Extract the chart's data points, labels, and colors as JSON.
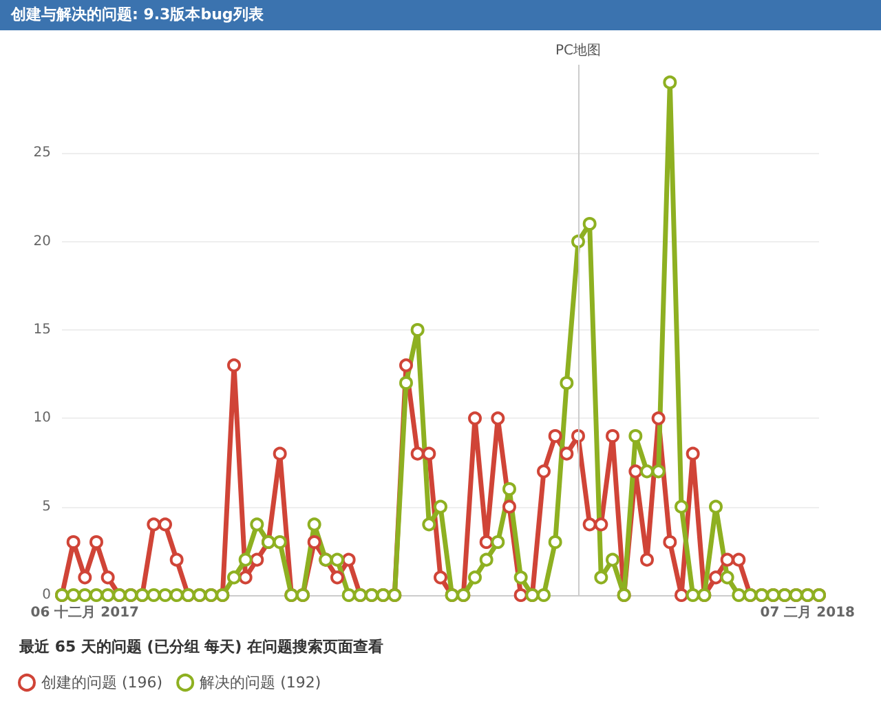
{
  "chart_data": {
    "type": "line",
    "title": "创建与解决的问题: 9.3版本bug列表",
    "x": [
      "2017-12-04",
      "2017-12-05",
      "2017-12-06",
      "2017-12-07",
      "2017-12-08",
      "2017-12-09",
      "2017-12-10",
      "2017-12-11",
      "2017-12-12",
      "2017-12-13",
      "2017-12-14",
      "2017-12-15",
      "2017-12-16",
      "2017-12-17",
      "2017-12-18",
      "2017-12-19",
      "2017-12-20",
      "2017-12-21",
      "2017-12-22",
      "2017-12-23",
      "2017-12-24",
      "2017-12-25",
      "2017-12-26",
      "2017-12-27",
      "2017-12-28",
      "2017-12-29",
      "2017-12-30",
      "2017-12-31",
      "2018-01-01",
      "2018-01-02",
      "2018-01-03",
      "2018-01-04",
      "2018-01-05",
      "2018-01-06",
      "2018-01-07",
      "2018-01-08",
      "2018-01-09",
      "2018-01-10",
      "2018-01-11",
      "2018-01-12",
      "2018-01-13",
      "2018-01-14",
      "2018-01-15",
      "2018-01-16",
      "2018-01-17",
      "2018-01-18",
      "2018-01-19",
      "2018-01-20",
      "2018-01-21",
      "2018-01-22",
      "2018-01-23",
      "2018-01-24",
      "2018-01-25",
      "2018-01-26",
      "2018-01-27",
      "2018-01-28",
      "2018-01-29",
      "2018-01-30",
      "2018-01-31",
      "2018-02-01",
      "2018-02-02",
      "2018-02-03",
      "2018-02-04",
      "2018-02-05",
      "2018-02-06",
      "2018-02-07",
      "2018-02-08"
    ],
    "series": [
      {
        "name": "创建的问题 (196)",
        "color": "#d04437",
        "values": [
          0,
          3,
          1,
          3,
          1,
          0,
          0,
          0,
          4,
          4,
          2,
          0,
          0,
          0,
          0,
          13,
          1,
          2,
          3,
          8,
          0,
          0,
          3,
          2,
          1,
          2,
          0,
          0,
          0,
          0,
          13,
          8,
          8,
          1,
          0,
          0,
          10,
          3,
          10,
          5,
          0,
          0,
          7,
          9,
          8,
          9,
          4,
          4,
          9,
          0,
          7,
          2,
          10,
          3,
          0,
          8,
          0,
          1,
          2,
          2,
          0,
          0,
          0,
          0,
          0,
          0,
          0
        ]
      },
      {
        "name": "解决的问题 (192)",
        "color": "#8eb021",
        "values": [
          0,
          0,
          0,
          0,
          0,
          0,
          0,
          0,
          0,
          0,
          0,
          0,
          0,
          0,
          0,
          1,
          2,
          4,
          3,
          3,
          0,
          0,
          4,
          2,
          2,
          0,
          0,
          0,
          0,
          0,
          12,
          15,
          4,
          5,
          0,
          0,
          1,
          2,
          3,
          6,
          1,
          0,
          0,
          3,
          12,
          20,
          21,
          1,
          2,
          0,
          9,
          7,
          7,
          29,
          5,
          0,
          0,
          5,
          1,
          0,
          0,
          0,
          0,
          0,
          0,
          0,
          0
        ]
      }
    ],
    "xlim": [
      "2017-12-04",
      "2018-02-08"
    ],
    "xticks": [
      {
        "value": "2017-12-06",
        "label": "06 十二月 2017"
      },
      {
        "value": "2018-02-07",
        "label": "07 二月 2018"
      }
    ],
    "ylim": [
      0,
      30
    ],
    "yticks": [
      0,
      5,
      10,
      15,
      20,
      25
    ],
    "grid": "y",
    "marker": "circle",
    "line_style": "solid",
    "legend": "bottom left",
    "ref_lines": [
      {
        "axis": "x",
        "value": "2018-01-18",
        "label": "PC地图",
        "color": "#cccccc"
      }
    ],
    "annotations": [
      "最近 65 天的问题 (已分组 每天) 在问题搜索页面查看"
    ]
  }
}
